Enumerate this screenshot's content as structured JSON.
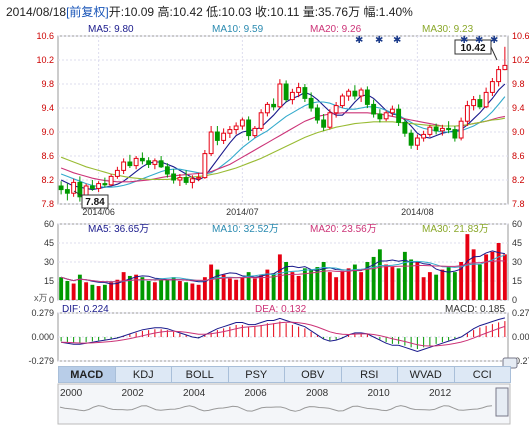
{
  "header": {
    "date": "2014/08/18",
    "adjust": "[前复权]",
    "open": "开:10.09",
    "high": "高:10.42",
    "low": "低:10.03",
    "close": "收:10.11",
    "volume": "量:35.76万",
    "change": "幅:1.40%"
  },
  "price_legend": {
    "ma5": "MA5: 9.80",
    "ma10": "MA10: 9.59",
    "ma20": "MA20: 9.26",
    "ma30": "MA30: 9.23"
  },
  "volume_legend": {
    "ma5": "MA5: 36.65万",
    "ma10": "MA10: 32.52万",
    "ma20": "MA20: 23.56万",
    "ma30": "MA30: 21.83万"
  },
  "macd_legend": {
    "dif": "DIF: 0.224",
    "dea": "DEA: 0.132",
    "macd": "MACD: 0.185",
    "unit": "x万"
  },
  "callouts": {
    "high": "10.42",
    "low": "7.84"
  },
  "tabs": [
    "MACD",
    "KDJ",
    "BOLL",
    "PSY",
    "OBV",
    "RSI",
    "WVAD",
    "CCI"
  ],
  "active_tab": "MACD",
  "timeline_years": [
    "2000",
    "2002",
    "2004",
    "2006",
    "2008",
    "2010",
    "2012"
  ],
  "colors": {
    "up": "#e60012",
    "down": "#009900",
    "ma5": "#1a1a8c",
    "ma10": "#33aacc",
    "ma20": "#cc3377",
    "ma30": "#99bb33"
  },
  "chart_data": [
    {
      "type": "candlestick",
      "x_ticks": [
        "2014/06",
        "2014/07",
        "2014/08"
      ],
      "ylim": [
        7.8,
        10.6
      ],
      "y_ticks": [
        7.8,
        8.2,
        8.6,
        9.0,
        9.4,
        9.8,
        10.2,
        10.6
      ],
      "grid": true,
      "candles": [
        {
          "o": 8.1,
          "h": 8.18,
          "l": 7.96,
          "c": 8.04
        },
        {
          "o": 8.04,
          "h": 8.14,
          "l": 7.86,
          "c": 7.98
        },
        {
          "o": 7.98,
          "h": 8.22,
          "l": 7.92,
          "c": 8.16
        },
        {
          "o": 8.16,
          "h": 8.26,
          "l": 7.84,
          "c": 7.92
        },
        {
          "o": 7.92,
          "h": 8.14,
          "l": 7.9,
          "c": 8.1
        },
        {
          "o": 8.1,
          "h": 8.2,
          "l": 8.02,
          "c": 8.06
        },
        {
          "o": 8.06,
          "h": 8.18,
          "l": 8.0,
          "c": 8.14
        },
        {
          "o": 8.14,
          "h": 8.24,
          "l": 8.08,
          "c": 8.12
        },
        {
          "o": 8.12,
          "h": 8.3,
          "l": 8.1,
          "c": 8.26
        },
        {
          "o": 8.26,
          "h": 8.42,
          "l": 8.22,
          "c": 8.36
        },
        {
          "o": 8.36,
          "h": 8.56,
          "l": 8.3,
          "c": 8.5
        },
        {
          "o": 8.5,
          "h": 8.62,
          "l": 8.4,
          "c": 8.44
        },
        {
          "o": 8.44,
          "h": 8.6,
          "l": 8.38,
          "c": 8.56
        },
        {
          "o": 8.56,
          "h": 8.66,
          "l": 8.46,
          "c": 8.52
        },
        {
          "o": 8.52,
          "h": 8.58,
          "l": 8.4,
          "c": 8.46
        },
        {
          "o": 8.46,
          "h": 8.56,
          "l": 8.38,
          "c": 8.52
        },
        {
          "o": 8.52,
          "h": 8.6,
          "l": 8.4,
          "c": 8.42
        },
        {
          "o": 8.42,
          "h": 8.48,
          "l": 8.24,
          "c": 8.3
        },
        {
          "o": 8.3,
          "h": 8.38,
          "l": 8.14,
          "c": 8.2
        },
        {
          "o": 8.2,
          "h": 8.3,
          "l": 8.1,
          "c": 8.24
        },
        {
          "o": 8.24,
          "h": 8.36,
          "l": 8.12,
          "c": 8.16
        },
        {
          "o": 8.16,
          "h": 8.28,
          "l": 8.06,
          "c": 8.22
        },
        {
          "o": 8.22,
          "h": 8.32,
          "l": 8.18,
          "c": 8.24
        },
        {
          "o": 8.24,
          "h": 8.7,
          "l": 8.22,
          "c": 8.64
        },
        {
          "o": 8.64,
          "h": 9.1,
          "l": 8.6,
          "c": 9.0
        },
        {
          "o": 9.0,
          "h": 9.1,
          "l": 8.78,
          "c": 8.86
        },
        {
          "o": 8.86,
          "h": 9.06,
          "l": 8.8,
          "c": 8.98
        },
        {
          "o": 8.98,
          "h": 9.1,
          "l": 8.9,
          "c": 9.04
        },
        {
          "o": 9.04,
          "h": 9.16,
          "l": 8.96,
          "c": 9.1
        },
        {
          "o": 9.1,
          "h": 9.24,
          "l": 9.04,
          "c": 9.2
        },
        {
          "o": 9.2,
          "h": 9.26,
          "l": 8.86,
          "c": 8.94
        },
        {
          "o": 8.94,
          "h": 9.1,
          "l": 8.9,
          "c": 9.06
        },
        {
          "o": 9.06,
          "h": 9.38,
          "l": 9.02,
          "c": 9.32
        },
        {
          "o": 9.32,
          "h": 9.5,
          "l": 9.26,
          "c": 9.46
        },
        {
          "o": 9.46,
          "h": 9.56,
          "l": 9.36,
          "c": 9.42
        },
        {
          "o": 9.42,
          "h": 9.88,
          "l": 9.4,
          "c": 9.8
        },
        {
          "o": 9.8,
          "h": 9.86,
          "l": 9.5,
          "c": 9.54
        },
        {
          "o": 9.54,
          "h": 9.72,
          "l": 9.46,
          "c": 9.66
        },
        {
          "o": 9.66,
          "h": 9.82,
          "l": 9.58,
          "c": 9.74
        },
        {
          "o": 9.74,
          "h": 9.8,
          "l": 9.5,
          "c": 9.56
        },
        {
          "o": 9.56,
          "h": 9.66,
          "l": 9.34,
          "c": 9.4
        },
        {
          "o": 9.4,
          "h": 9.46,
          "l": 9.14,
          "c": 9.2
        },
        {
          "o": 9.2,
          "h": 9.3,
          "l": 9.02,
          "c": 9.08
        },
        {
          "o": 9.08,
          "h": 9.38,
          "l": 9.04,
          "c": 9.32
        },
        {
          "o": 9.32,
          "h": 9.5,
          "l": 9.24,
          "c": 9.44
        },
        {
          "o": 9.44,
          "h": 9.64,
          "l": 9.4,
          "c": 9.6
        },
        {
          "o": 9.6,
          "h": 9.72,
          "l": 9.52,
          "c": 9.68
        },
        {
          "o": 9.68,
          "h": 9.78,
          "l": 9.54,
          "c": 9.6
        },
        {
          "o": 9.6,
          "h": 9.74,
          "l": 9.5,
          "c": 9.7
        },
        {
          "o": 9.7,
          "h": 9.76,
          "l": 9.4,
          "c": 9.46
        },
        {
          "o": 9.46,
          "h": 9.54,
          "l": 9.24,
          "c": 9.3
        },
        {
          "o": 9.3,
          "h": 9.38,
          "l": 9.16,
          "c": 9.22
        },
        {
          "o": 9.22,
          "h": 9.36,
          "l": 9.18,
          "c": 9.32
        },
        {
          "o": 9.32,
          "h": 9.44,
          "l": 9.26,
          "c": 9.38
        },
        {
          "o": 9.38,
          "h": 9.46,
          "l": 9.1,
          "c": 9.16
        },
        {
          "o": 9.16,
          "h": 9.22,
          "l": 8.92,
          "c": 8.98
        },
        {
          "o": 8.98,
          "h": 9.04,
          "l": 8.72,
          "c": 8.78
        },
        {
          "o": 8.78,
          "h": 8.96,
          "l": 8.7,
          "c": 8.9
        },
        {
          "o": 8.9,
          "h": 9.02,
          "l": 8.84,
          "c": 8.96
        },
        {
          "o": 8.96,
          "h": 9.12,
          "l": 8.92,
          "c": 9.08
        },
        {
          "o": 9.08,
          "h": 9.14,
          "l": 8.96,
          "c": 9.02
        },
        {
          "o": 9.02,
          "h": 9.12,
          "l": 8.94,
          "c": 9.06
        },
        {
          "o": 9.06,
          "h": 9.18,
          "l": 8.98,
          "c": 9.04
        },
        {
          "o": 9.04,
          "h": 9.1,
          "l": 8.84,
          "c": 8.9
        },
        {
          "o": 8.9,
          "h": 9.24,
          "l": 8.86,
          "c": 9.18
        },
        {
          "o": 9.18,
          "h": 9.52,
          "l": 9.1,
          "c": 9.44
        },
        {
          "o": 9.44,
          "h": 9.6,
          "l": 9.36,
          "c": 9.54
        },
        {
          "o": 9.54,
          "h": 9.62,
          "l": 9.38,
          "c": 9.42
        },
        {
          "o": 9.42,
          "h": 9.74,
          "l": 9.4,
          "c": 9.66
        },
        {
          "o": 9.66,
          "h": 9.9,
          "l": 9.6,
          "c": 9.84
        },
        {
          "o": 9.84,
          "h": 10.1,
          "l": 9.76,
          "c": 10.04
        },
        {
          "o": 10.04,
          "h": 10.42,
          "l": 10.03,
          "c": 10.11
        }
      ],
      "ma_series": [
        {
          "name": "MA5",
          "values": [
            8.2,
            8.15,
            8.1,
            8.08,
            8.06,
            8.04,
            8.06,
            8.08,
            8.1,
            8.13,
            8.18,
            8.26,
            8.34,
            8.42,
            8.48,
            8.5,
            8.5,
            8.46,
            8.42,
            8.36,
            8.3,
            8.24,
            8.2,
            8.26,
            8.4,
            8.54,
            8.68,
            8.82,
            8.94,
            9.0,
            9.02,
            9.04,
            9.08,
            9.18,
            9.28,
            9.4,
            9.5,
            9.56,
            9.6,
            9.66,
            9.62,
            9.54,
            9.44,
            9.34,
            9.28,
            9.28,
            9.38,
            9.5,
            9.6,
            9.62,
            9.56,
            9.46,
            9.36,
            9.3,
            9.28,
            9.2,
            9.1,
            8.98,
            8.92,
            8.9,
            8.94,
            8.98,
            9.0,
            9.02,
            9.04,
            9.12,
            9.22,
            9.32,
            9.44,
            9.56,
            9.7,
            9.8
          ]
        },
        {
          "name": "MA10",
          "values": [
            8.3,
            8.26,
            8.22,
            8.18,
            8.14,
            8.11,
            8.09,
            8.08,
            8.08,
            8.09,
            8.11,
            8.14,
            8.18,
            8.22,
            8.26,
            8.3,
            8.34,
            8.37,
            8.38,
            8.38,
            8.36,
            8.34,
            8.32,
            8.3,
            8.32,
            8.38,
            8.46,
            8.54,
            8.64,
            8.74,
            8.82,
            8.9,
            8.96,
            9.02,
            9.1,
            9.18,
            9.26,
            9.32,
            9.38,
            9.44,
            9.48,
            9.5,
            9.5,
            9.48,
            9.44,
            9.4,
            9.38,
            9.38,
            9.4,
            9.42,
            9.42,
            9.4,
            9.36,
            9.32,
            9.28,
            9.22,
            9.16,
            9.1,
            9.06,
            9.04,
            9.02,
            9.0,
            9.0,
            9.0,
            9.02,
            9.06,
            9.1,
            9.16,
            9.24,
            9.34,
            9.46,
            9.59
          ]
        },
        {
          "name": "MA20",
          "values": [
            8.4,
            8.36,
            8.32,
            8.29,
            8.26,
            8.23,
            8.21,
            8.19,
            8.18,
            8.17,
            8.17,
            8.17,
            8.18,
            8.19,
            8.2,
            8.22,
            8.24,
            8.26,
            8.27,
            8.28,
            8.29,
            8.3,
            8.31,
            8.32,
            8.34,
            8.38,
            8.42,
            8.46,
            8.52,
            8.58,
            8.64,
            8.7,
            8.76,
            8.82,
            8.88,
            8.94,
            9.0,
            9.06,
            9.12,
            9.18,
            9.22,
            9.26,
            9.28,
            9.3,
            9.31,
            9.32,
            9.32,
            9.32,
            9.32,
            9.32,
            9.31,
            9.3,
            9.28,
            9.26,
            9.24,
            9.22,
            9.2,
            9.18,
            9.16,
            9.14,
            9.12,
            9.1,
            9.1,
            9.1,
            9.1,
            9.12,
            9.14,
            9.16,
            9.18,
            9.21,
            9.24,
            9.26
          ]
        },
        {
          "name": "MA30",
          "values": [
            8.58,
            8.54,
            8.5,
            8.46,
            8.42,
            8.39,
            8.36,
            8.33,
            8.3,
            8.28,
            8.26,
            8.24,
            8.23,
            8.22,
            8.21,
            8.21,
            8.21,
            8.21,
            8.22,
            8.23,
            8.24,
            8.25,
            8.26,
            8.27,
            8.29,
            8.31,
            8.34,
            8.37,
            8.4,
            8.44,
            8.48,
            8.52,
            8.56,
            8.61,
            8.66,
            8.71,
            8.76,
            8.81,
            8.86,
            8.91,
            8.95,
            8.99,
            9.02,
            9.05,
            9.08,
            9.1,
            9.12,
            9.14,
            9.15,
            9.16,
            9.17,
            9.17,
            9.17,
            9.17,
            9.16,
            9.15,
            9.14,
            9.13,
            9.12,
            9.11,
            9.1,
            9.1,
            9.1,
            9.1,
            9.11,
            9.12,
            9.14,
            9.16,
            9.18,
            9.2,
            9.21,
            9.23
          ]
        }
      ]
    },
    {
      "type": "bar",
      "name": "volume",
      "ylim": [
        0,
        60
      ],
      "y_ticks": [
        0,
        15,
        30,
        45,
        60
      ],
      "values": [
        18,
        15,
        13,
        20,
        14,
        12,
        11,
        12,
        14,
        16,
        22,
        19,
        20,
        18,
        15,
        14,
        17,
        16,
        18,
        15,
        14,
        13,
        12,
        18,
        28,
        24,
        20,
        17,
        16,
        18,
        22,
        17,
        20,
        24,
        21,
        36,
        30,
        22,
        19,
        25,
        24,
        26,
        30,
        22,
        18,
        23,
        25,
        28,
        22,
        30,
        34,
        40,
        28,
        26,
        25,
        38,
        32,
        30,
        18,
        22,
        20,
        24,
        26,
        22,
        30,
        52,
        40,
        28,
        36,
        38,
        45,
        36
      ]
    },
    {
      "type": "bar",
      "name": "MACD",
      "ylim": [
        -0.279,
        0.279
      ],
      "y_ticks": [
        -0.279,
        0.0,
        0.279
      ],
      "values": [
        -0.05,
        -0.06,
        -0.07,
        -0.07,
        -0.06,
        -0.05,
        -0.04,
        -0.03,
        -0.02,
        -0.01,
        0.01,
        0.03,
        0.05,
        0.07,
        0.08,
        0.09,
        0.09,
        0.08,
        0.06,
        0.04,
        0.02,
        0.0,
        -0.01,
        0.02,
        0.05,
        0.08,
        0.1,
        0.12,
        0.14,
        0.14,
        0.12,
        0.12,
        0.14,
        0.16,
        0.16,
        0.18,
        0.16,
        0.14,
        0.12,
        0.1,
        0.06,
        0.02,
        -0.02,
        -0.04,
        -0.03,
        -0.01,
        0.02,
        0.04,
        0.04,
        0.03,
        0.0,
        -0.03,
        -0.06,
        -0.08,
        -0.08,
        -0.1,
        -0.12,
        -0.14,
        -0.12,
        -0.1,
        -0.08,
        -0.06,
        -0.04,
        -0.02,
        0.0,
        0.04,
        0.08,
        0.11,
        0.13,
        0.15,
        0.17,
        0.185
      ]
    }
  ]
}
